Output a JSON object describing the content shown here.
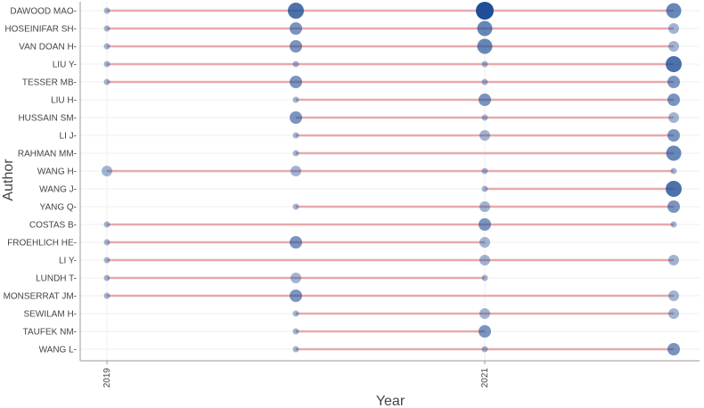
{
  "chart_data": {
    "type": "scatter",
    "subtype": "author-production-over-time",
    "xlabel": "Year",
    "ylabel": "Author",
    "x_ticks": [
      "2019",
      "2021"
    ],
    "x_range": [
      2019,
      2022
    ],
    "grid": true,
    "legend": "none",
    "colors": {
      "line": "#e8a9ab",
      "bubble": "#1f4e96",
      "axis": "#999999",
      "grid": "#efefef"
    },
    "authors": [
      {
        "name": "DAWOOD MAO",
        "start": 2019,
        "end": 2022,
        "points": [
          {
            "year": 2019,
            "n": 1
          },
          {
            "year": 2020,
            "n": 5
          },
          {
            "year": 2021,
            "n": 7
          },
          {
            "year": 2022,
            "n": 4
          }
        ]
      },
      {
        "name": "HOSEINIFAR SH",
        "start": 2019,
        "end": 2022,
        "points": [
          {
            "year": 2019,
            "n": 1
          },
          {
            "year": 2020,
            "n": 3
          },
          {
            "year": 2021,
            "n": 4
          },
          {
            "year": 2022,
            "n": 2
          }
        ]
      },
      {
        "name": "VAN DOAN H",
        "start": 2019,
        "end": 2022,
        "points": [
          {
            "year": 2019,
            "n": 1
          },
          {
            "year": 2020,
            "n": 3
          },
          {
            "year": 2021,
            "n": 4
          },
          {
            "year": 2022,
            "n": 2
          }
        ]
      },
      {
        "name": "LIU Y",
        "start": 2019,
        "end": 2022,
        "points": [
          {
            "year": 2019,
            "n": 1
          },
          {
            "year": 2020,
            "n": 1
          },
          {
            "year": 2021,
            "n": 1
          },
          {
            "year": 2022,
            "n": 5
          }
        ]
      },
      {
        "name": "TESSER MB",
        "start": 2019,
        "end": 2022,
        "points": [
          {
            "year": 2019,
            "n": 1
          },
          {
            "year": 2020,
            "n": 3
          },
          {
            "year": 2021,
            "n": 1
          },
          {
            "year": 2022,
            "n": 3
          }
        ]
      },
      {
        "name": "LIU H",
        "start": 2020,
        "end": 2022,
        "points": [
          {
            "year": 2020,
            "n": 1
          },
          {
            "year": 2021,
            "n": 3
          },
          {
            "year": 2022,
            "n": 3
          }
        ]
      },
      {
        "name": "HUSSAIN SM",
        "start": 2020,
        "end": 2022,
        "points": [
          {
            "year": 2020,
            "n": 3
          },
          {
            "year": 2021,
            "n": 1
          },
          {
            "year": 2022,
            "n": 2
          }
        ]
      },
      {
        "name": "LI J",
        "start": 2020,
        "end": 2022,
        "points": [
          {
            "year": 2020,
            "n": 1
          },
          {
            "year": 2021,
            "n": 2
          },
          {
            "year": 2022,
            "n": 3
          }
        ]
      },
      {
        "name": "RAHMAN MM",
        "start": 2020,
        "end": 2022,
        "points": [
          {
            "year": 2020,
            "n": 1
          },
          {
            "year": 2022,
            "n": 4
          }
        ]
      },
      {
        "name": "WANG H",
        "start": 2019,
        "end": 2022,
        "points": [
          {
            "year": 2019,
            "n": 2
          },
          {
            "year": 2020,
            "n": 2
          },
          {
            "year": 2021,
            "n": 1
          },
          {
            "year": 2022,
            "n": 1
          }
        ]
      },
      {
        "name": "WANG J",
        "start": 2021,
        "end": 2022,
        "points": [
          {
            "year": 2021,
            "n": 1
          },
          {
            "year": 2022,
            "n": 5
          }
        ]
      },
      {
        "name": "YANG Q",
        "start": 2020,
        "end": 2022,
        "points": [
          {
            "year": 2020,
            "n": 1
          },
          {
            "year": 2021,
            "n": 2
          },
          {
            "year": 2022,
            "n": 3
          }
        ]
      },
      {
        "name": "COSTAS B",
        "start": 2019,
        "end": 2022,
        "points": [
          {
            "year": 2019,
            "n": 1
          },
          {
            "year": 2021,
            "n": 3
          },
          {
            "year": 2022,
            "n": 1
          }
        ]
      },
      {
        "name": "FROEHLICH HE",
        "start": 2019,
        "end": 2021,
        "points": [
          {
            "year": 2019,
            "n": 1
          },
          {
            "year": 2020,
            "n": 3
          },
          {
            "year": 2021,
            "n": 2
          }
        ]
      },
      {
        "name": "LI Y",
        "start": 2019,
        "end": 2022,
        "points": [
          {
            "year": 2019,
            "n": 1
          },
          {
            "year": 2021,
            "n": 2
          },
          {
            "year": 2022,
            "n": 2
          }
        ]
      },
      {
        "name": "LUNDH T",
        "start": 2019,
        "end": 2021,
        "points": [
          {
            "year": 2019,
            "n": 1
          },
          {
            "year": 2020,
            "n": 2
          },
          {
            "year": 2021,
            "n": 1
          }
        ]
      },
      {
        "name": "MONSERRAT JM",
        "start": 2019,
        "end": 2022,
        "points": [
          {
            "year": 2019,
            "n": 1
          },
          {
            "year": 2020,
            "n": 3
          },
          {
            "year": 2022,
            "n": 2
          }
        ]
      },
      {
        "name": "SEWILAM H",
        "start": 2020,
        "end": 2022,
        "points": [
          {
            "year": 2020,
            "n": 1
          },
          {
            "year": 2021,
            "n": 2
          },
          {
            "year": 2022,
            "n": 2
          }
        ]
      },
      {
        "name": "TAUFEK NM",
        "start": 2020,
        "end": 2021,
        "points": [
          {
            "year": 2020,
            "n": 1
          },
          {
            "year": 2021,
            "n": 3
          }
        ]
      },
      {
        "name": "WANG L",
        "start": 2020,
        "end": 2022,
        "points": [
          {
            "year": 2020,
            "n": 1
          },
          {
            "year": 2021,
            "n": 1
          },
          {
            "year": 2022,
            "n": 3
          }
        ]
      }
    ]
  }
}
